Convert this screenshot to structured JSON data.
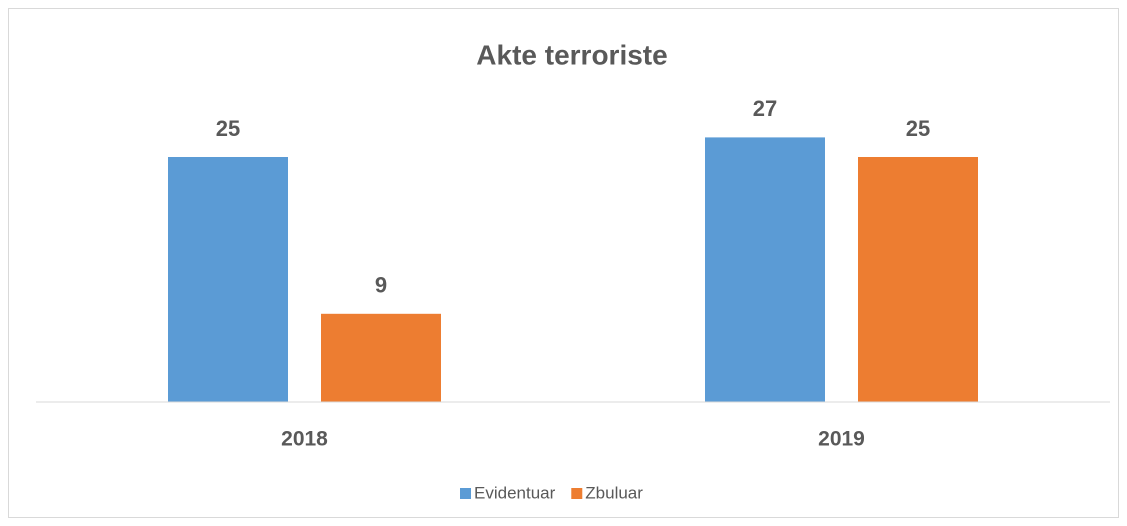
{
  "chart_data": {
    "type": "bar",
    "title": "Akte terroriste",
    "categories": [
      "2018",
      "2019"
    ],
    "series": [
      {
        "name": "Evidentuar",
        "color": "#5b9bd5",
        "values": [
          25,
          27
        ]
      },
      {
        "name": "Zbuluar",
        "color": "#ed7d31",
        "values": [
          9,
          25
        ]
      }
    ],
    "ylim": [
      0,
      30
    ],
    "legend": "bottom"
  }
}
